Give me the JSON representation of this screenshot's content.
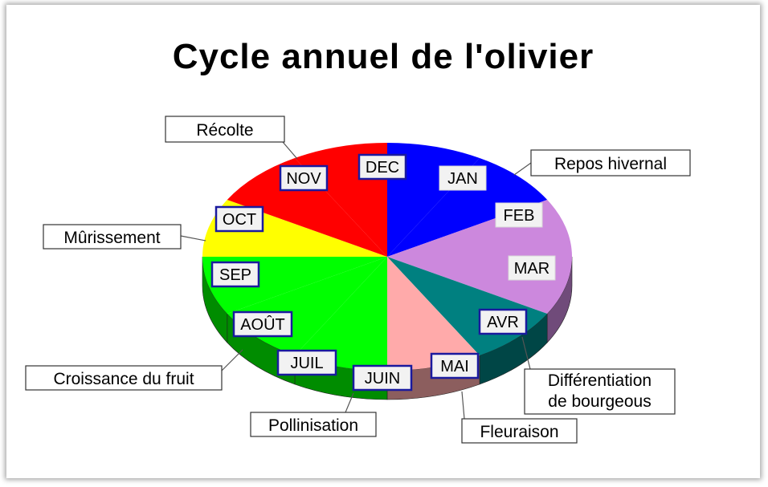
{
  "chart_data": {
    "type": "pie",
    "title": "Cycle annuel de l'olivier",
    "months": [
      {
        "label": "JAN",
        "value": 1,
        "color": "#0000ff"
      },
      {
        "label": "FEB",
        "value": 1,
        "color": "#0000ff"
      },
      {
        "label": "MAR",
        "value": 1,
        "color": "#cc88dd"
      },
      {
        "label": "AVR",
        "value": 1,
        "color": "#cc88dd"
      },
      {
        "label": "MAI",
        "value": 1,
        "color": "#008080"
      },
      {
        "label": "JUIN",
        "value": 1,
        "color": "#ffaaaa"
      },
      {
        "label": "JUIL",
        "value": 1,
        "color": "#00ff00"
      },
      {
        "label": "AOÛT",
        "value": 1,
        "color": "#00ff00"
      },
      {
        "label": "SEP",
        "value": 1,
        "color": "#00ff00"
      },
      {
        "label": "OCT",
        "value": 1,
        "color": "#ffff00"
      },
      {
        "label": "NOV",
        "value": 1,
        "color": "#ff0000"
      },
      {
        "label": "DEC",
        "value": 1,
        "color": "#ff0000"
      }
    ],
    "phases": [
      {
        "label": "Repos hivernal",
        "months": [
          "DEC",
          "JAN",
          "FEB"
        ],
        "color": "#0000ff"
      },
      {
        "label": "Différentiation de bourgeous",
        "lines": [
          "Différentiation",
          "de bourgeous"
        ],
        "months": [
          "MAR",
          "AVR"
        ],
        "color": "#cc88dd"
      },
      {
        "label": "Fleuraison",
        "months": [
          "MAI"
        ],
        "color": "#008080"
      },
      {
        "label": "Pollinisation",
        "months": [
          "JUIN"
        ],
        "color": "#ffaaaa"
      },
      {
        "label": "Croissance du fruit",
        "months": [
          "JUIL",
          "AOÛT",
          "SEP"
        ],
        "color": "#00ff00"
      },
      {
        "label": "Mûrissement",
        "months": [
          "OCT"
        ],
        "color": "#ffff00"
      },
      {
        "label": "Récolte",
        "months": [
          "NOV",
          "DEC"
        ],
        "color": "#ff0000"
      }
    ]
  }
}
